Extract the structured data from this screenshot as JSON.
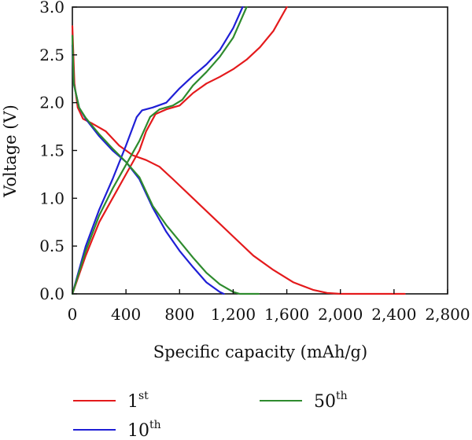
{
  "chart_data": {
    "type": "line",
    "xlabel": "Specific capacity (mAh/g)",
    "ylabel": "Voltage (V)",
    "xlim": [
      0,
      2800
    ],
    "ylim": [
      0,
      3.0
    ],
    "x_ticks": [
      0,
      400,
      800,
      1200,
      1600,
      2000,
      2400,
      2800
    ],
    "x_tick_labels": [
      "0",
      "400",
      "800",
      "1,200",
      "1,600",
      "2,000",
      "2,400",
      "2,800"
    ],
    "y_ticks": [
      0,
      0.5,
      1.0,
      1.5,
      2.0,
      2.5,
      3.0
    ],
    "y_tick_labels": [
      "0.0",
      "0.5",
      "1.0",
      "1.5",
      "2.0",
      "2.5",
      "3.0"
    ],
    "grid": false,
    "legend_position": "bottom",
    "series": [
      {
        "name": "1st",
        "name_base": "1",
        "name_sup": "st",
        "color": "#e41a1c",
        "discharge": [
          [
            0,
            2.8
          ],
          [
            15,
            2.2
          ],
          [
            40,
            1.95
          ],
          [
            80,
            1.83
          ],
          [
            150,
            1.78
          ],
          [
            250,
            1.7
          ],
          [
            350,
            1.55
          ],
          [
            450,
            1.45
          ],
          [
            550,
            1.4
          ],
          [
            650,
            1.33
          ],
          [
            750,
            1.2
          ],
          [
            900,
            1.0
          ],
          [
            1050,
            0.8
          ],
          [
            1200,
            0.6
          ],
          [
            1350,
            0.4
          ],
          [
            1500,
            0.25
          ],
          [
            1650,
            0.12
          ],
          [
            1800,
            0.04
          ],
          [
            1900,
            0.01
          ],
          [
            2000,
            0.0
          ],
          [
            2480,
            0.0
          ]
        ],
        "charge": [
          [
            0,
            0.0
          ],
          [
            100,
            0.4
          ],
          [
            200,
            0.75
          ],
          [
            300,
            1.0
          ],
          [
            400,
            1.25
          ],
          [
            500,
            1.5
          ],
          [
            550,
            1.7
          ],
          [
            620,
            1.88
          ],
          [
            700,
            1.93
          ],
          [
            800,
            1.97
          ],
          [
            900,
            2.1
          ],
          [
            1000,
            2.2
          ],
          [
            1100,
            2.27
          ],
          [
            1200,
            2.35
          ],
          [
            1300,
            2.45
          ],
          [
            1400,
            2.58
          ],
          [
            1500,
            2.75
          ],
          [
            1600,
            3.0
          ]
        ]
      },
      {
        "name": "10th",
        "name_base": "10",
        "name_sup": "th",
        "color": "#1f1fd6",
        "discharge": [
          [
            0,
            2.6
          ],
          [
            10,
            2.2
          ],
          [
            50,
            1.95
          ],
          [
            100,
            1.83
          ],
          [
            200,
            1.65
          ],
          [
            300,
            1.5
          ],
          [
            400,
            1.38
          ],
          [
            500,
            1.2
          ],
          [
            600,
            0.9
          ],
          [
            700,
            0.65
          ],
          [
            800,
            0.45
          ],
          [
            900,
            0.28
          ],
          [
            1000,
            0.12
          ],
          [
            1100,
            0.02
          ],
          [
            1130,
            0.0
          ]
        ],
        "charge": [
          [
            0,
            0.0
          ],
          [
            100,
            0.5
          ],
          [
            200,
            0.88
          ],
          [
            300,
            1.2
          ],
          [
            400,
            1.55
          ],
          [
            480,
            1.85
          ],
          [
            520,
            1.92
          ],
          [
            600,
            1.95
          ],
          [
            700,
            2.0
          ],
          [
            800,
            2.15
          ],
          [
            900,
            2.28
          ],
          [
            1000,
            2.4
          ],
          [
            1100,
            2.55
          ],
          [
            1200,
            2.78
          ],
          [
            1270,
            3.0
          ]
        ]
      },
      {
        "name": "50th",
        "name_base": "50",
        "name_sup": "th",
        "color": "#2e8b2e",
        "discharge": [
          [
            0,
            2.7
          ],
          [
            10,
            2.2
          ],
          [
            50,
            1.95
          ],
          [
            100,
            1.84
          ],
          [
            200,
            1.67
          ],
          [
            300,
            1.52
          ],
          [
            400,
            1.38
          ],
          [
            500,
            1.22
          ],
          [
            600,
            0.92
          ],
          [
            700,
            0.72
          ],
          [
            800,
            0.55
          ],
          [
            900,
            0.38
          ],
          [
            1000,
            0.22
          ],
          [
            1100,
            0.1
          ],
          [
            1200,
            0.02
          ],
          [
            1250,
            0.0
          ],
          [
            1390,
            0.0
          ]
        ],
        "charge": [
          [
            0,
            0.0
          ],
          [
            100,
            0.45
          ],
          [
            200,
            0.82
          ],
          [
            300,
            1.1
          ],
          [
            400,
            1.35
          ],
          [
            500,
            1.6
          ],
          [
            580,
            1.85
          ],
          [
            650,
            1.93
          ],
          [
            750,
            1.97
          ],
          [
            820,
            2.03
          ],
          [
            900,
            2.18
          ],
          [
            1000,
            2.32
          ],
          [
            1100,
            2.48
          ],
          [
            1200,
            2.68
          ],
          [
            1300,
            3.0
          ]
        ]
      }
    ]
  }
}
